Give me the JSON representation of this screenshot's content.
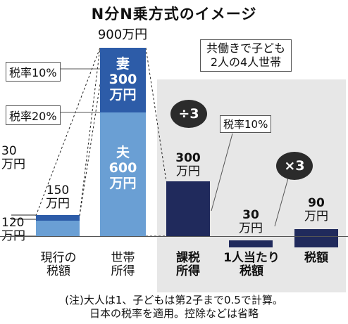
{
  "title": "N分N乗方式のイメージ",
  "household_label_line1": "共働きで子ども",
  "household_label_line2": "2人の4人世帯",
  "current": {
    "bracket_10": "税率10%",
    "bracket_20": "税率20%",
    "tax_label_line1": "150",
    "tax_label_line2": "万円",
    "upper_part_line1": "30",
    "upper_part_line2": "万円",
    "lower_part_line1": "120",
    "lower_part_line2": "万円",
    "axis_line1": "現行の",
    "axis_line2": "税額"
  },
  "household": {
    "total_label": "900万円",
    "wife_line1": "妻",
    "wife_line2": "300",
    "wife_line3": "万円",
    "husband_line1": "夫",
    "husband_line2": "600",
    "husband_line3": "万円",
    "axis_line1": "世帯",
    "axis_line2": "所得"
  },
  "taxable": {
    "operation": "÷3",
    "value_line1": "300",
    "value_line2": "万円",
    "axis_line1": "課税",
    "axis_line2": "所得"
  },
  "per_person": {
    "rate_label": "税率10%",
    "value_line1": "30",
    "value_line2": "万円",
    "axis_line1": "1人当たり",
    "axis_line2": "税額"
  },
  "tax": {
    "operation": "×3",
    "value_line1": "90",
    "value_line2": "万円",
    "axis_line1": "税額"
  },
  "note_line1": "(注)大人は1、子どもは第2子まで0.5で計算。",
  "note_line2": "日本の税率を適用。控除などは省略",
  "colors": {
    "light_blue": "#6a9fd4",
    "mid_blue": "#2d5ca8",
    "navy": "#202a5c",
    "panel_gray": "#e7e7e7",
    "bubble": "#2b2b2b"
  }
}
